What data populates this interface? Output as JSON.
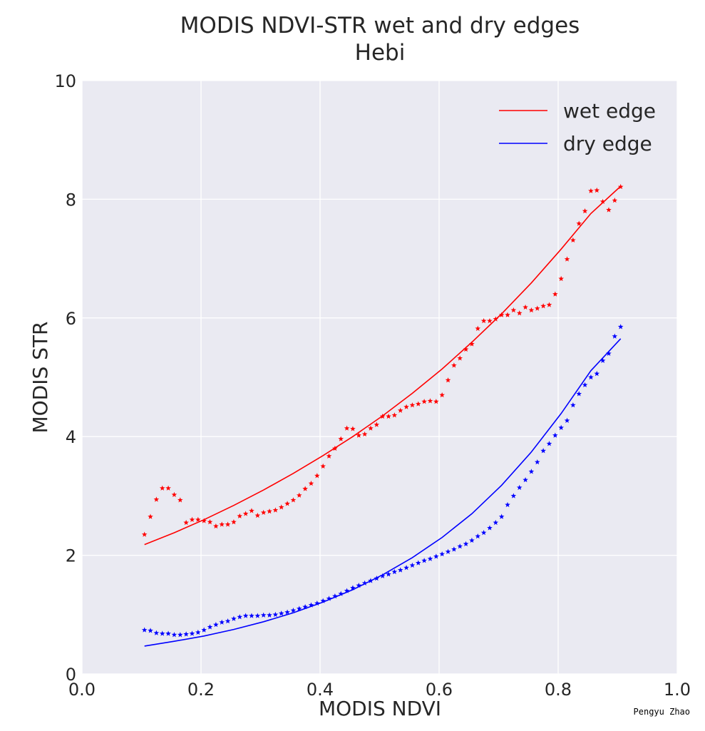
{
  "chart_data": {
    "type": "line",
    "title": "MODIS NDVI-STR wet and dry edges",
    "subtitle": "Hebi",
    "xlabel": "MODIS NDVI",
    "ylabel": "MODIS STR",
    "xlim": [
      0.0,
      1.0
    ],
    "ylim": [
      0,
      10
    ],
    "xticks": [
      "0.0",
      "0.2",
      "0.4",
      "0.6",
      "0.8",
      "1.0"
    ],
    "yticks": [
      "0",
      "2",
      "4",
      "6",
      "8",
      "10"
    ],
    "grid": true,
    "legend_position": "top-right",
    "credit": "Pengyu Zhao",
    "series": [
      {
        "name": "wet edge",
        "kind": "fit-line",
        "color": "#ff0000",
        "x": [
          0.105,
          0.155,
          0.205,
          0.255,
          0.305,
          0.355,
          0.405,
          0.455,
          0.505,
          0.555,
          0.605,
          0.655,
          0.705,
          0.755,
          0.805,
          0.855,
          0.905
        ],
        "y": [
          2.18,
          2.38,
          2.6,
          2.84,
          3.1,
          3.38,
          3.68,
          4.0,
          4.35,
          4.73,
          5.14,
          5.59,
          6.07,
          6.59,
          7.16,
          7.76,
          8.22
        ]
      },
      {
        "name": "dry edge",
        "kind": "fit-line",
        "color": "#0000ff",
        "x": [
          0.105,
          0.155,
          0.205,
          0.255,
          0.305,
          0.355,
          0.405,
          0.455,
          0.505,
          0.555,
          0.605,
          0.655,
          0.705,
          0.755,
          0.805,
          0.855,
          0.905
        ],
        "y": [
          0.47,
          0.55,
          0.64,
          0.75,
          0.88,
          1.03,
          1.21,
          1.42,
          1.67,
          1.96,
          2.3,
          2.7,
          3.18,
          3.74,
          4.39,
          5.11,
          5.65
        ]
      },
      {
        "kind": "stars",
        "color": "#ff0000",
        "x": [
          0.105,
          0.115,
          0.125,
          0.135,
          0.145,
          0.155,
          0.165,
          0.175,
          0.185,
          0.195,
          0.205,
          0.215,
          0.225,
          0.235,
          0.245,
          0.255,
          0.265,
          0.275,
          0.285,
          0.295,
          0.305,
          0.315,
          0.325,
          0.335,
          0.345,
          0.355,
          0.365,
          0.375,
          0.385,
          0.395,
          0.405,
          0.415,
          0.425,
          0.435,
          0.445,
          0.455,
          0.465,
          0.475,
          0.485,
          0.495,
          0.505,
          0.515,
          0.525,
          0.535,
          0.545,
          0.555,
          0.565,
          0.575,
          0.585,
          0.595,
          0.605,
          0.615,
          0.625,
          0.635,
          0.645,
          0.655,
          0.665,
          0.675,
          0.685,
          0.695,
          0.705,
          0.715,
          0.725,
          0.735,
          0.745,
          0.755,
          0.765,
          0.775,
          0.785,
          0.795,
          0.805,
          0.815,
          0.825,
          0.835,
          0.845,
          0.855,
          0.865,
          0.875,
          0.885,
          0.895,
          0.905
        ],
        "y": [
          2.35,
          2.65,
          2.94,
          3.13,
          3.13,
          3.02,
          2.93,
          2.55,
          2.6,
          2.6,
          2.58,
          2.56,
          2.49,
          2.52,
          2.52,
          2.56,
          2.66,
          2.7,
          2.75,
          2.67,
          2.72,
          2.74,
          2.76,
          2.81,
          2.87,
          2.93,
          3.01,
          3.12,
          3.21,
          3.34,
          3.5,
          3.67,
          3.8,
          3.96,
          4.14,
          4.13,
          4.02,
          4.04,
          4.14,
          4.2,
          4.34,
          4.34,
          4.36,
          4.44,
          4.5,
          4.53,
          4.55,
          4.59,
          4.6,
          4.59,
          4.7,
          4.95,
          5.2,
          5.32,
          5.47,
          5.56,
          5.82,
          5.95,
          5.95,
          5.98,
          6.05,
          6.05,
          6.13,
          6.08,
          6.18,
          6.13,
          6.16,
          6.2,
          6.22,
          6.4,
          6.66,
          6.99,
          7.31,
          7.59,
          7.8,
          8.14,
          8.15,
          7.96,
          7.82,
          7.98,
          8.21
        ]
      },
      {
        "kind": "stars",
        "color": "#0000ff",
        "x": [
          0.105,
          0.115,
          0.125,
          0.135,
          0.145,
          0.155,
          0.165,
          0.175,
          0.185,
          0.195,
          0.205,
          0.215,
          0.225,
          0.235,
          0.245,
          0.255,
          0.265,
          0.275,
          0.285,
          0.295,
          0.305,
          0.315,
          0.325,
          0.335,
          0.345,
          0.355,
          0.365,
          0.375,
          0.385,
          0.395,
          0.405,
          0.415,
          0.425,
          0.435,
          0.445,
          0.455,
          0.465,
          0.475,
          0.485,
          0.495,
          0.505,
          0.515,
          0.525,
          0.535,
          0.545,
          0.555,
          0.565,
          0.575,
          0.585,
          0.595,
          0.605,
          0.615,
          0.625,
          0.635,
          0.645,
          0.655,
          0.665,
          0.675,
          0.685,
          0.695,
          0.705,
          0.715,
          0.725,
          0.735,
          0.745,
          0.755,
          0.765,
          0.775,
          0.785,
          0.795,
          0.805,
          0.815,
          0.825,
          0.835,
          0.845,
          0.855,
          0.865,
          0.875,
          0.885,
          0.895,
          0.905
        ],
        "y": [
          0.74,
          0.73,
          0.69,
          0.68,
          0.68,
          0.66,
          0.66,
          0.67,
          0.68,
          0.7,
          0.74,
          0.79,
          0.83,
          0.87,
          0.89,
          0.93,
          0.96,
          0.98,
          0.98,
          0.98,
          0.99,
          0.99,
          1.0,
          1.02,
          1.04,
          1.07,
          1.1,
          1.13,
          1.16,
          1.19,
          1.23,
          1.27,
          1.31,
          1.35,
          1.4,
          1.45,
          1.49,
          1.53,
          1.57,
          1.61,
          1.65,
          1.68,
          1.72,
          1.75,
          1.79,
          1.83,
          1.87,
          1.91,
          1.94,
          1.98,
          2.02,
          2.06,
          2.1,
          2.15,
          2.19,
          2.25,
          2.32,
          2.38,
          2.46,
          2.55,
          2.65,
          2.85,
          3.0,
          3.14,
          3.27,
          3.41,
          3.57,
          3.76,
          3.88,
          4.02,
          4.15,
          4.27,
          4.53,
          4.72,
          4.87,
          5.0,
          5.06,
          5.28,
          5.4,
          5.69,
          5.85
        ]
      }
    ]
  }
}
